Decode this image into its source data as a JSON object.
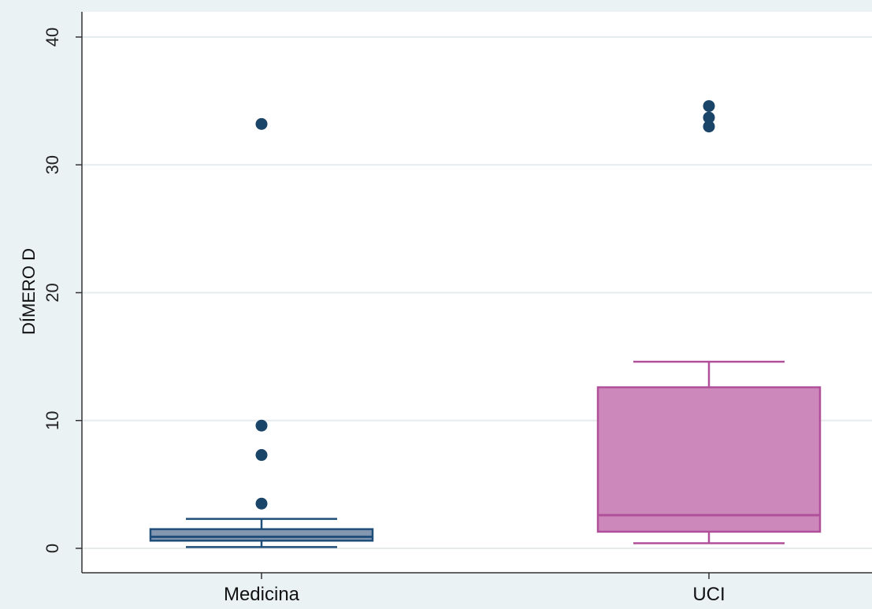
{
  "chart_data": {
    "type": "box",
    "title": "",
    "xlabel": "",
    "ylabel": "DÍMERO D",
    "ylim": [
      0,
      40
    ],
    "yticks": [
      0,
      10,
      20,
      30,
      40
    ],
    "grid": true,
    "categories": [
      "Medicina",
      "UCI"
    ],
    "boxes": [
      {
        "category": "Medicina",
        "whisker_low": 0.1,
        "q1": 0.6,
        "median": 0.9,
        "q3": 1.5,
        "whisker_high": 2.3,
        "outliers": [
          3.5,
          7.3,
          9.6,
          33.2
        ],
        "fill": "#8497b0",
        "stroke": "#1f4e79"
      },
      {
        "category": "UCI",
        "whisker_low": 0.4,
        "q1": 1.3,
        "median": 2.6,
        "q3": 12.6,
        "whisker_high": 14.6,
        "outliers": [
          33.0,
          33.7,
          34.6
        ],
        "fill": "#cc88bb",
        "stroke": "#b0509a"
      }
    ],
    "outlier_color": "#1a4468"
  }
}
